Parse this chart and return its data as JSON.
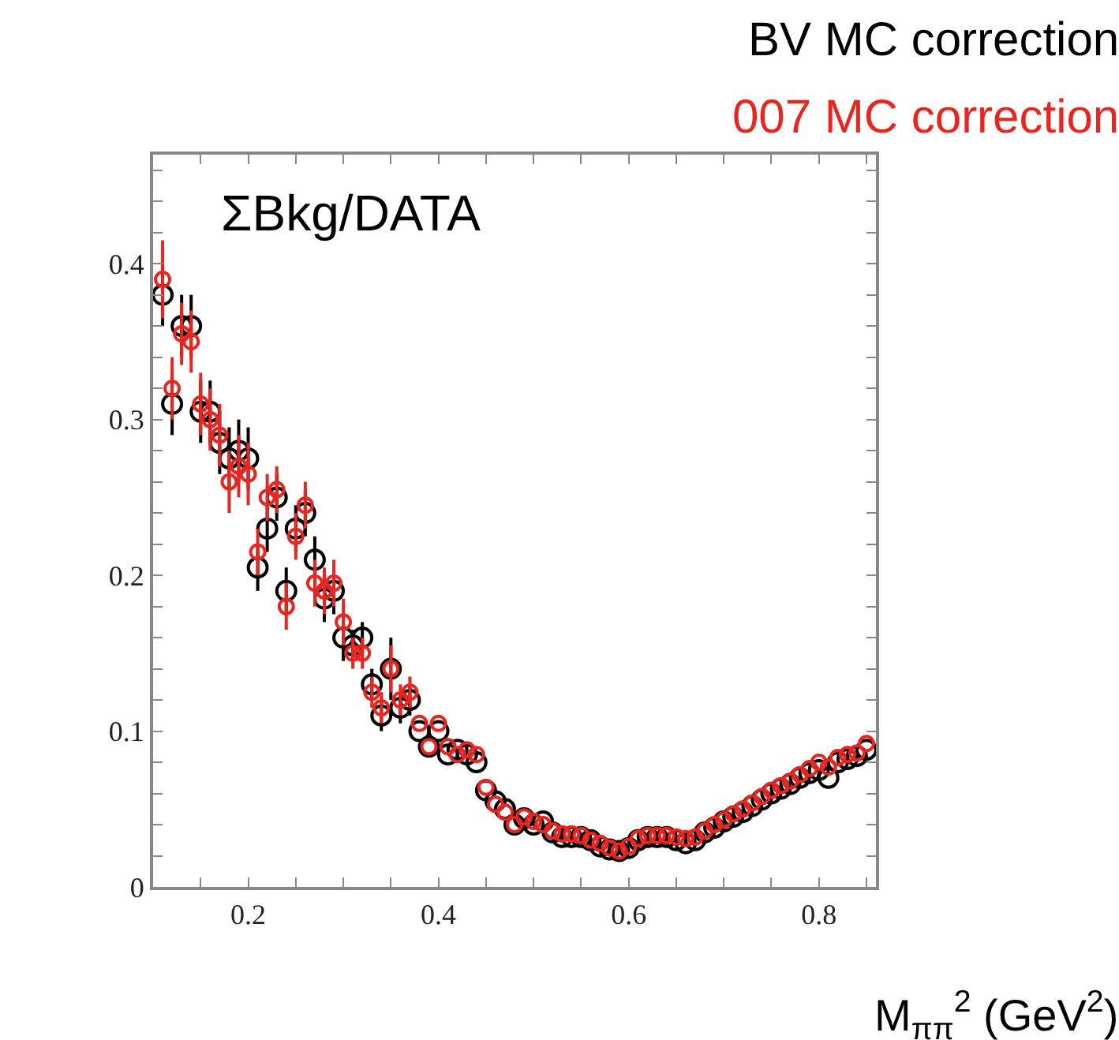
{
  "chart_data": {
    "type": "scatter",
    "title": "ΣBkg/DATA",
    "xlabel": "M$_{ππ}$$^{2}$ (GeV$^{2}$)",
    "x": [
      0.11,
      0.12,
      0.13,
      0.14,
      0.15,
      0.16,
      0.17,
      0.18,
      0.19,
      0.2,
      0.21,
      0.22,
      0.23,
      0.24,
      0.25,
      0.26,
      0.27,
      0.28,
      0.29,
      0.3,
      0.31,
      0.32,
      0.33,
      0.34,
      0.35,
      0.36,
      0.37,
      0.38,
      0.39,
      0.4,
      0.41,
      0.42,
      0.43,
      0.44,
      0.45,
      0.46,
      0.47,
      0.48,
      0.49,
      0.5,
      0.51,
      0.52,
      0.53,
      0.54,
      0.55,
      0.56,
      0.57,
      0.58,
      0.59,
      0.6,
      0.61,
      0.62,
      0.63,
      0.64,
      0.65,
      0.66,
      0.67,
      0.68,
      0.69,
      0.7,
      0.71,
      0.72,
      0.73,
      0.74,
      0.75,
      0.76,
      0.77,
      0.78,
      0.79,
      0.8,
      0.81,
      0.82,
      0.83,
      0.84,
      0.85
    ],
    "series": [
      {
        "name": "BV MC correction",
        "color": "#000000",
        "values": [
          0.38,
          0.31,
          0.36,
          0.36,
          0.305,
          0.305,
          0.285,
          0.275,
          0.28,
          0.275,
          0.205,
          0.23,
          0.25,
          0.19,
          0.23,
          0.24,
          0.21,
          0.185,
          0.19,
          0.16,
          0.155,
          0.16,
          0.13,
          0.11,
          0.14,
          0.115,
          0.12,
          0.1,
          0.09,
          0.1,
          0.085,
          0.088,
          0.085,
          0.08,
          0.062,
          0.055,
          0.05,
          0.04,
          0.044,
          0.04,
          0.042,
          0.035,
          0.032,
          0.032,
          0.032,
          0.03,
          0.026,
          0.024,
          0.023,
          0.025,
          0.03,
          0.032,
          0.032,
          0.032,
          0.03,
          0.028,
          0.03,
          0.035,
          0.038,
          0.042,
          0.045,
          0.048,
          0.052,
          0.056,
          0.06,
          0.063,
          0.066,
          0.07,
          0.073,
          0.075,
          0.07,
          0.08,
          0.082,
          0.084,
          0.088
        ],
        "errors": [
          0.02,
          0.02,
          0.02,
          0.02,
          0.02,
          0.02,
          0.02,
          0.02,
          0.02,
          0.02,
          0.015,
          0.015,
          0.015,
          0.015,
          0.015,
          0.015,
          0.015,
          0.015,
          0.015,
          0.015,
          0.01,
          0.01,
          0.01,
          0.01,
          0.02,
          0.01,
          0.01,
          null,
          null,
          null,
          null,
          null,
          null,
          null,
          null,
          null,
          null,
          null,
          null,
          null,
          null,
          null,
          null,
          null,
          null,
          null,
          null,
          null,
          null,
          null,
          null,
          null,
          null,
          null,
          null,
          null,
          null,
          null,
          null,
          null,
          null,
          null,
          null,
          null,
          null,
          null,
          null,
          null,
          null,
          null,
          null,
          null,
          null,
          null,
          null
        ]
      },
      {
        "name": "007 MC correction",
        "color": "#e8251f",
        "values": [
          0.39,
          0.32,
          0.355,
          0.35,
          0.31,
          0.3,
          0.29,
          0.26,
          0.27,
          0.265,
          0.215,
          0.25,
          0.255,
          0.18,
          0.225,
          0.245,
          0.195,
          0.19,
          0.195,
          0.17,
          0.15,
          0.15,
          0.125,
          0.115,
          0.14,
          0.12,
          0.125,
          0.105,
          0.09,
          0.105,
          0.09,
          0.085,
          0.088,
          0.085,
          0.064,
          0.053,
          0.048,
          0.04,
          0.045,
          0.042,
          0.04,
          0.036,
          0.034,
          0.034,
          0.033,
          0.03,
          0.028,
          0.025,
          0.023,
          0.026,
          0.031,
          0.033,
          0.033,
          0.033,
          0.032,
          0.031,
          0.032,
          0.036,
          0.04,
          0.043,
          0.047,
          0.05,
          0.054,
          0.058,
          0.062,
          0.065,
          0.068,
          0.072,
          0.076,
          0.08,
          0.077,
          0.083,
          0.085,
          0.086,
          0.092
        ],
        "errors": [
          0.025,
          0.02,
          0.02,
          0.02,
          0.02,
          0.02,
          0.02,
          0.02,
          0.02,
          0.02,
          0.015,
          0.015,
          0.015,
          0.015,
          0.015,
          0.015,
          0.015,
          0.015,
          0.015,
          0.015,
          0.01,
          0.01,
          0.01,
          0.01,
          0.015,
          0.01,
          0.01,
          null,
          null,
          null,
          null,
          null,
          null,
          null,
          null,
          null,
          null,
          null,
          null,
          null,
          null,
          null,
          null,
          null,
          null,
          null,
          null,
          null,
          null,
          null,
          null,
          null,
          null,
          null,
          null,
          null,
          null,
          null,
          null,
          null,
          null,
          null,
          null,
          null,
          null,
          null,
          null,
          null,
          null,
          null,
          null,
          null,
          null,
          null,
          null
        ]
      }
    ],
    "marker": "circle",
    "legend": "top right",
    "xlim": [
      0.1,
      0.86
    ],
    "xticks": [
      {
        "value": 0.15,
        "label": null
      },
      0.2,
      {
        "value": 0.25,
        "label": null
      },
      {
        "value": 0.3,
        "label": null
      },
      {
        "value": 0.35,
        "label": null
      },
      0.4,
      {
        "value": 0.45,
        "label": null
      },
      {
        "value": 0.5,
        "label": null
      },
      {
        "value": 0.55,
        "label": null
      },
      0.6,
      {
        "value": 0.65,
        "label": null
      },
      {
        "value": 0.7,
        "label": null
      },
      {
        "value": 0.75,
        "label": null
      },
      0.8,
      {
        "value": 0.85,
        "label": null
      }
    ],
    "ylim": [
      0,
      0.47
    ],
    "yticks": [
      0,
      {
        "value": 0.02,
        "label": null
      },
      {
        "value": 0.04,
        "label": null
      },
      {
        "value": 0.06,
        "label": null
      },
      {
        "value": 0.08,
        "label": null
      },
      0.1,
      {
        "value": 0.12,
        "label": null
      },
      {
        "value": 0.14,
        "label": null
      },
      {
        "value": 0.16,
        "label": null
      },
      {
        "value": 0.18,
        "label": null
      },
      0.2,
      {
        "value": 0.22,
        "label": null
      },
      {
        "value": 0.24,
        "label": null
      },
      {
        "value": 0.26,
        "label": null
      },
      {
        "value": 0.28,
        "label": null
      },
      0.3,
      {
        "value": 0.32,
        "label": null
      },
      {
        "value": 0.34,
        "label": null
      },
      {
        "value": 0.36,
        "label": null
      },
      {
        "value": 0.38,
        "label": null
      },
      0.4,
      {
        "value": 0.42,
        "label": null
      },
      {
        "value": 0.44,
        "label": null
      },
      {
        "value": 0.46,
        "label": null
      }
    ]
  }
}
